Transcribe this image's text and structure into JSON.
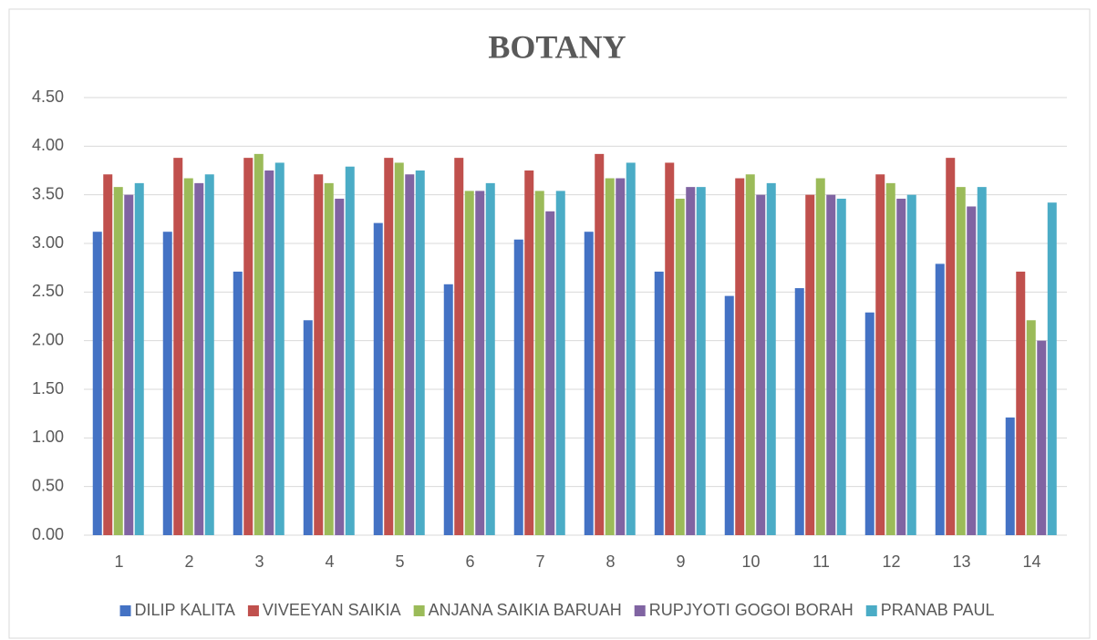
{
  "chart_data": {
    "type": "bar",
    "title": "BOTANY",
    "categories": [
      "1",
      "2",
      "3",
      "4",
      "5",
      "6",
      "7",
      "8",
      "9",
      "10",
      "11",
      "12",
      "13",
      "14"
    ],
    "series": [
      {
        "name": "DILIP KALITA",
        "color": "#4472c4",
        "values": [
          3.12,
          3.12,
          2.71,
          2.21,
          3.21,
          2.58,
          3.04,
          3.12,
          2.71,
          2.46,
          2.54,
          2.29,
          2.79,
          1.21
        ]
      },
      {
        "name": "VIVEEYAN SAIKIA",
        "color": "#c0504d",
        "values": [
          3.71,
          3.88,
          3.88,
          3.71,
          3.88,
          3.88,
          3.75,
          3.92,
          3.83,
          3.67,
          3.5,
          3.71,
          3.88,
          2.71
        ]
      },
      {
        "name": "ANJANA SAIKIA BARUAH",
        "color": "#9bbb59",
        "values": [
          3.58,
          3.67,
          3.92,
          3.62,
          3.83,
          3.54,
          3.54,
          3.67,
          3.46,
          3.71,
          3.67,
          3.62,
          3.58,
          2.21
        ]
      },
      {
        "name": "RUPJYOTI GOGOI BORAH",
        "color": "#8064a2",
        "values": [
          3.5,
          3.62,
          3.75,
          3.46,
          3.71,
          3.54,
          3.33,
          3.67,
          3.58,
          3.5,
          3.5,
          3.46,
          3.38,
          2.0
        ]
      },
      {
        "name": "PRANAB PAUL",
        "color": "#4bacc6",
        "values": [
          3.62,
          3.71,
          3.83,
          3.79,
          3.75,
          3.62,
          3.54,
          3.83,
          3.58,
          3.62,
          3.46,
          3.5,
          3.58,
          3.42
        ]
      }
    ],
    "ylim": [
      0,
      4.5
    ],
    "yticks": [
      {
        "value": 0,
        "label": "0.00"
      },
      {
        "value": 0.5,
        "label": "0.50"
      },
      {
        "value": 1,
        "label": "1.00"
      },
      {
        "value": 1.5,
        "label": "1.50"
      },
      {
        "value": 2,
        "label": "2.00"
      },
      {
        "value": 2.5,
        "label": "2.50"
      },
      {
        "value": 3,
        "label": "3.00"
      },
      {
        "value": 3.5,
        "label": "3.50"
      },
      {
        "value": 4,
        "label": "4.00"
      },
      {
        "value": 4.5,
        "label": "4.50"
      }
    ],
    "grid": true,
    "legend": "bottom"
  }
}
